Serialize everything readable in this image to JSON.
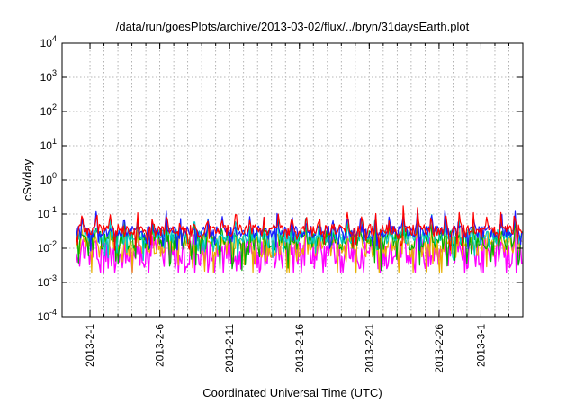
{
  "chart_data": {
    "type": "line",
    "title": "/data/run/goesPlots/archive/2013-03-02/flux/../bryn/31daysEarth.plot",
    "xlabel": "Coordinated Universal Time (UTC)",
    "ylabel": "cSv/day",
    "yscale": "log",
    "ylim": [
      0.0001,
      10000
    ],
    "xlim": [
      "2013-01-30",
      "2013-03-04"
    ],
    "grid": true,
    "y_ticks": [
      {
        "base": "10",
        "exp": "4",
        "value": 10000
      },
      {
        "base": "10",
        "exp": "3",
        "value": 1000
      },
      {
        "base": "10",
        "exp": "2",
        "value": 100
      },
      {
        "base": "10",
        "exp": "1",
        "value": 10
      },
      {
        "base": "10",
        "exp": "0",
        "value": 1
      },
      {
        "base": "10",
        "exp": "-1",
        "value": 0.1
      },
      {
        "base": "10",
        "exp": "-2",
        "value": 0.01
      },
      {
        "base": "10",
        "exp": "-3",
        "value": 0.001
      },
      {
        "base": "10",
        "exp": "-4",
        "value": 0.0001
      }
    ],
    "x_ticks": [
      {
        "label": "2013-2-1",
        "date": "2013-02-01"
      },
      {
        "label": "2013-2-6",
        "date": "2013-02-06"
      },
      {
        "label": "2013-2-11",
        "date": "2013-02-11"
      },
      {
        "label": "2013-2-16",
        "date": "2013-02-16"
      },
      {
        "label": "2013-2-21",
        "date": "2013-02-21"
      },
      {
        "label": "2013-2-26",
        "date": "2013-02-26"
      },
      {
        "label": "2013-3-1",
        "date": "2013-03-01"
      }
    ],
    "x_minor_step_days": 1,
    "series": [
      {
        "color": "#ff0000",
        "base": 0.033,
        "spread": 0.18,
        "peak": 2.6,
        "values": []
      },
      {
        "color": "#1a1aff",
        "base": 0.03,
        "spread": 0.18,
        "peak": 2.5,
        "values": []
      },
      {
        "color": "#00c8c8",
        "base": 0.022,
        "spread": 0.22,
        "peak": 2.4,
        "values": []
      },
      {
        "color": "#00b000",
        "base": 0.017,
        "spread": 0.28,
        "peak": 2.2,
        "values": []
      },
      {
        "color": "#e8b000",
        "base": 0.012,
        "spread": 0.35,
        "peak": 2.0,
        "values": []
      },
      {
        "color": "#ff00ff",
        "base": 0.007,
        "spread": 0.45,
        "peak": 2.4,
        "values": []
      }
    ]
  }
}
